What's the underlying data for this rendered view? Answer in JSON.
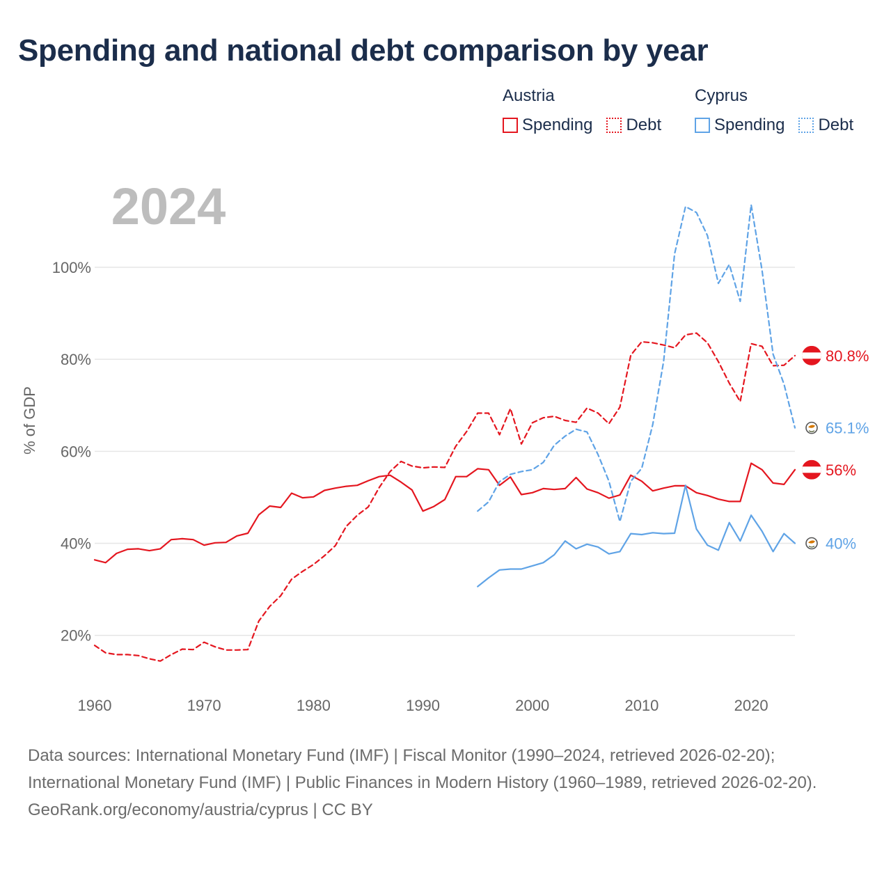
{
  "title": "Spending and national debt comparison by year",
  "legend": {
    "groups": [
      {
        "name": "Austria",
        "color": "#e4161f",
        "items": [
          {
            "label": "Spending",
            "style": "solid"
          },
          {
            "label": "Debt",
            "style": "dotted"
          }
        ]
      },
      {
        "name": "Cyprus",
        "color": "#5fa3e6",
        "items": [
          {
            "label": "Spending",
            "style": "solid"
          },
          {
            "label": "Debt",
            "style": "dotted"
          }
        ]
      }
    ]
  },
  "chart_data": {
    "type": "line",
    "year_label": "2024",
    "ylabel": "% of GDP",
    "xlabel": "",
    "xlim": [
      1960,
      2024
    ],
    "ylim": [
      8,
      118
    ],
    "x_ticks": [
      "1960",
      "1970",
      "1980",
      "1990",
      "2000",
      "2010",
      "2020"
    ],
    "y_ticks": [
      {
        "value": 20,
        "label": "20%"
      },
      {
        "value": 40,
        "label": "40%"
      },
      {
        "value": 60,
        "label": "60%"
      },
      {
        "value": 80,
        "label": "80%"
      },
      {
        "value": 100,
        "label": "100%"
      }
    ],
    "series": [
      {
        "name": "Austria Spending",
        "color": "#e4161f",
        "dash": "solid",
        "x": [
          1960,
          1961,
          1962,
          1963,
          1964,
          1965,
          1966,
          1967,
          1968,
          1969,
          1970,
          1971,
          1972,
          1973,
          1974,
          1975,
          1976,
          1977,
          1978,
          1979,
          1980,
          1981,
          1982,
          1983,
          1984,
          1985,
          1986,
          1987,
          1988,
          1989,
          1990,
          1991,
          1992,
          1993,
          1994,
          1995,
          1996,
          1997,
          1998,
          1999,
          2000,
          2001,
          2002,
          2003,
          2004,
          2005,
          2006,
          2007,
          2008,
          2009,
          2010,
          2011,
          2012,
          2013,
          2014,
          2015,
          2016,
          2017,
          2018,
          2019,
          2020,
          2021,
          2022,
          2023,
          2024
        ],
        "values": [
          36.4,
          35.8,
          37.8,
          38.7,
          38.8,
          38.4,
          38.8,
          40.8,
          41,
          40.8,
          39.6,
          40.1,
          40.2,
          41.6,
          42.2,
          46.2,
          48.1,
          47.8,
          50.9,
          49.9,
          50.1,
          51.5,
          52,
          52.4,
          52.6,
          53.6,
          54.5,
          54.8,
          53.3,
          51.6,
          47,
          48,
          49.5,
          54.5,
          54.5,
          56.2,
          56,
          52.6,
          54.4,
          50.6,
          51,
          51.9,
          51.7,
          51.9,
          54.3,
          51.8,
          51,
          49.8,
          50.5,
          54.8,
          53.5,
          51.4,
          52,
          52.5,
          52.5,
          51,
          50.4,
          49.6,
          49.1,
          49.1,
          57.4,
          56,
          53.1,
          52.8,
          56
        ]
      },
      {
        "name": "Austria Debt",
        "color": "#e4161f",
        "dash": "dashed",
        "x": [
          1960,
          1961,
          1962,
          1963,
          1964,
          1965,
          1966,
          1967,
          1968,
          1969,
          1970,
          1971,
          1972,
          1973,
          1974,
          1975,
          1976,
          1977,
          1978,
          1979,
          1980,
          1981,
          1982,
          1983,
          1984,
          1985,
          1986,
          1987,
          1988,
          1989,
          1990,
          1991,
          1992,
          1993,
          1994,
          1995,
          1996,
          1997,
          1998,
          1999,
          2000,
          2001,
          2002,
          2003,
          2004,
          2005,
          2006,
          2007,
          2008,
          2009,
          2010,
          2011,
          2012,
          2013,
          2014,
          2015,
          2016,
          2017,
          2018,
          2019,
          2020,
          2021,
          2022,
          2023,
          2024
        ],
        "values": [
          17.8,
          16.2,
          15.8,
          15.8,
          15.6,
          14.9,
          14.4,
          15.8,
          17,
          16.9,
          18.5,
          17.5,
          16.8,
          16.8,
          16.9,
          23.1,
          26.3,
          28.6,
          32.2,
          33.9,
          35.4,
          37.3,
          39.5,
          43.7,
          46.1,
          47.9,
          52.1,
          55.6,
          57.8,
          56.8,
          56.4,
          56.6,
          56.5,
          61.1,
          64.3,
          68.3,
          68.3,
          63.6,
          69.3,
          61.6,
          66.2,
          67.3,
          67.6,
          66.7,
          66.3,
          69.4,
          68.3,
          66,
          69.6,
          80.9,
          83.8,
          83.6,
          83.1,
          82.5,
          85.3,
          85.7,
          83.6,
          79.5,
          74.8,
          70.8,
          83.4,
          82.8,
          78.6,
          78.7,
          80.8
        ]
      },
      {
        "name": "Cyprus Spending",
        "color": "#5fa3e6",
        "dash": "solid",
        "x": [
          1995,
          1996,
          1997,
          1998,
          1999,
          2000,
          2001,
          2002,
          2003,
          2004,
          2005,
          2006,
          2007,
          2008,
          2009,
          2010,
          2011,
          2012,
          2013,
          2014,
          2015,
          2016,
          2017,
          2018,
          2019,
          2020,
          2021,
          2022,
          2023,
          2024
        ],
        "values": [
          30.6,
          32.5,
          34.2,
          34.4,
          34.4,
          35.1,
          35.8,
          37.5,
          40.5,
          38.8,
          39.8,
          39.2,
          37.7,
          38.2,
          42.1,
          41.9,
          42.3,
          42.1,
          42.2,
          52.6,
          43.1,
          39.6,
          38.5,
          44.5,
          40.5,
          46.1,
          42.6,
          38.2,
          42.1,
          40
        ]
      },
      {
        "name": "Cyprus Debt",
        "color": "#5fa3e6",
        "dash": "dashed",
        "x": [
          1995,
          1996,
          1997,
          1998,
          1999,
          2000,
          2001,
          2002,
          2003,
          2004,
          2005,
          2006,
          2007,
          2008,
          2009,
          2010,
          2011,
          2012,
          2013,
          2014,
          2015,
          2016,
          2017,
          2018,
          2019,
          2020,
          2021,
          2022,
          2023,
          2024
        ],
        "values": [
          47,
          49,
          53.4,
          55,
          55.6,
          56,
          57.6,
          61.3,
          63.3,
          64.8,
          64.2,
          59.3,
          53.5,
          44.7,
          53.5,
          56.3,
          65.8,
          79.6,
          102.9,
          113.2,
          111.9,
          106.9,
          96.5,
          100.6,
          92.6,
          113.6,
          99.3,
          81.1,
          74.6,
          65.1
        ]
      }
    ],
    "end_labels": [
      {
        "series": "Austria Debt",
        "text": "80.8%",
        "value": 80.8,
        "color": "#e4161f",
        "marker": "austria-flag"
      },
      {
        "series": "Cyprus Debt",
        "text": "65.1%",
        "value": 65.1,
        "color": "#5fa3e6",
        "marker": "cyprus-flag"
      },
      {
        "series": "Austria Spending",
        "text": "56%",
        "value": 56,
        "color": "#e4161f",
        "marker": "austria-flag"
      },
      {
        "series": "Cyprus Spending",
        "text": "40%",
        "value": 40,
        "color": "#5fa3e6",
        "marker": "cyprus-flag"
      }
    ]
  },
  "footer": {
    "sources": "Data sources: International Monetary Fund (IMF) | Fiscal Monitor (1990–2024, retrieved 2026-02-20); International Monetary Fund (IMF) | Public Finances in Modern History (1960–1989, retrieved 2026-02-20).",
    "credit": "GeoRank.org/economy/austria/cyprus | CC BY"
  }
}
